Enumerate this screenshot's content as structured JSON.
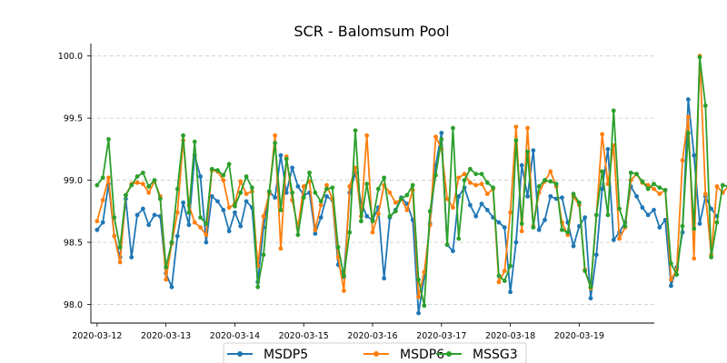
{
  "chart_data": {
    "type": "line",
    "title": "SCR - Balomsum Pool",
    "xlabel": "",
    "ylabel": "",
    "x_range": [
      "2020-03-11T21:50",
      "2020-03-20T02:10"
    ],
    "x_ticks": [
      "2020-03-12",
      "2020-03-13",
      "2020-03-14",
      "2020-03-15",
      "2020-03-16",
      "2020-03-17",
      "2020-03-18",
      "2020-03-19"
    ],
    "y_ticks": [
      "98.0",
      "98.5",
      "99.0",
      "99.5",
      "100.0"
    ],
    "ylim": [
      97.85,
      100.1
    ],
    "grid": "horizontal, dashed",
    "legend_position": "bottom-center",
    "sample_interval_hours": 2,
    "start": "2020-03-12T00:00",
    "colors": {
      "MSDP5": "#1f77b4",
      "MSDP6": "#ff7f0e",
      "MSSG3": "#2ca02c"
    },
    "series": [
      {
        "name": "MSDP5",
        "color": "#1f77b4",
        "x_start": "2020-03-12T00:00",
        "values": [
          98.6,
          98.66,
          98.97,
          98.55,
          98.38,
          98.85,
          98.38,
          98.72,
          98.77,
          98.64,
          98.72,
          98.71,
          98.25,
          98.14,
          98.55,
          98.82,
          98.64,
          99.2,
          99.03,
          98.5,
          98.87,
          98.83,
          98.76,
          98.59,
          98.74,
          98.63,
          98.83,
          98.78,
          98.18,
          98.62,
          98.91,
          98.86,
          99.2,
          98.9,
          99.1,
          98.95,
          98.88,
          98.9,
          98.57,
          98.7,
          98.87,
          98.84,
          98.32,
          98.22,
          98.9,
          99.06,
          98.82,
          98.71,
          98.68,
          98.78,
          98.21,
          98.7,
          98.76,
          98.86,
          98.81,
          98.68,
          97.93,
          98.22,
          98.65,
          99.12,
          99.38,
          98.48,
          98.43,
          98.87,
          98.94,
          98.8,
          98.71,
          98.81,
          98.76,
          98.7,
          98.66,
          98.62,
          98.1,
          98.5,
          99.12,
          98.87,
          99.24,
          98.6,
          98.68,
          98.87,
          98.85,
          98.86,
          98.66,
          98.47,
          98.63,
          98.7,
          98.05,
          98.4,
          98.93,
          99.25,
          98.52,
          98.58,
          98.66,
          98.95,
          98.87,
          98.78,
          98.72,
          98.76,
          98.62,
          98.68,
          98.15,
          98.3,
          98.58,
          99.65,
          99.2,
          98.65,
          98.87,
          98.77,
          98.71
        ]
      },
      {
        "name": "MSDP6",
        "color": "#ff7f0e",
        "x_start": "2020-03-12T00:00",
        "values": [
          98.67,
          98.84,
          99.02,
          98.55,
          98.34,
          98.88,
          98.97,
          98.98,
          98.97,
          98.9,
          98.99,
          98.87,
          98.2,
          98.49,
          98.74,
          99.32,
          98.8,
          98.66,
          98.62,
          98.56,
          99.08,
          99.07,
          99.0,
          98.78,
          98.81,
          98.99,
          98.89,
          98.91,
          98.31,
          98.71,
          98.89,
          99.36,
          98.45,
          99.19,
          98.84,
          98.62,
          98.95,
          98.99,
          98.6,
          98.8,
          98.96,
          98.85,
          98.38,
          98.11,
          98.95,
          99.1,
          98.71,
          99.36,
          98.58,
          98.73,
          98.96,
          98.9,
          98.82,
          98.85,
          98.76,
          98.92,
          98.06,
          98.26,
          98.64,
          99.35,
          99.25,
          98.85,
          98.78,
          99.02,
          99.05,
          98.98,
          98.96,
          98.97,
          98.89,
          98.93,
          98.18,
          98.27,
          98.74,
          99.43,
          98.59,
          99.42,
          98.63,
          98.9,
          98.99,
          99.07,
          98.95,
          98.66,
          98.56,
          98.87,
          98.8,
          98.28,
          98.13,
          98.72,
          99.37,
          98.97,
          99.28,
          98.53,
          98.62,
          99.0,
          99.05,
          98.98,
          98.96,
          98.93,
          98.89,
          98.92,
          98.2,
          98.28,
          99.16,
          99.51,
          98.37,
          100.0,
          98.89,
          98.4,
          98.95,
          98.9,
          98.95
        ]
      },
      {
        "name": "MSSG3",
        "color": "#2ca02c",
        "x_start": "2020-03-12T00:00",
        "values": [
          98.96,
          99.02,
          99.33,
          98.7,
          98.46,
          98.88,
          98.96,
          99.03,
          99.06,
          98.95,
          99.0,
          98.85,
          98.3,
          98.5,
          98.93,
          99.36,
          98.74,
          99.31,
          98.7,
          98.65,
          99.09,
          99.08,
          99.04,
          99.13,
          98.79,
          98.9,
          99.03,
          98.94,
          98.14,
          98.4,
          98.91,
          99.3,
          98.76,
          99.17,
          98.9,
          98.56,
          98.86,
          99.06,
          98.9,
          98.83,
          98.93,
          98.94,
          98.46,
          98.23,
          98.58,
          99.4,
          98.67,
          98.97,
          98.67,
          98.93,
          99.02,
          98.71,
          98.75,
          98.85,
          98.88,
          98.96,
          98.2,
          97.99,
          98.75,
          99.04,
          99.33,
          98.48,
          99.42,
          98.53,
          99.0,
          99.09,
          99.05,
          99.05,
          98.98,
          98.94,
          98.23,
          98.19,
          98.31,
          99.32,
          98.65,
          99.23,
          98.62,
          98.95,
          99.0,
          98.99,
          98.97,
          98.6,
          98.58,
          98.89,
          98.82,
          98.27,
          98.14,
          98.72,
          99.07,
          98.72,
          99.56,
          98.77,
          98.63,
          99.06,
          99.05,
          98.99,
          98.93,
          98.97,
          98.94,
          98.92,
          98.33,
          98.24,
          98.63,
          99.38,
          98.61,
          99.99,
          99.6,
          98.38,
          98.66,
          98.96,
          98.95
        ]
      }
    ]
  }
}
